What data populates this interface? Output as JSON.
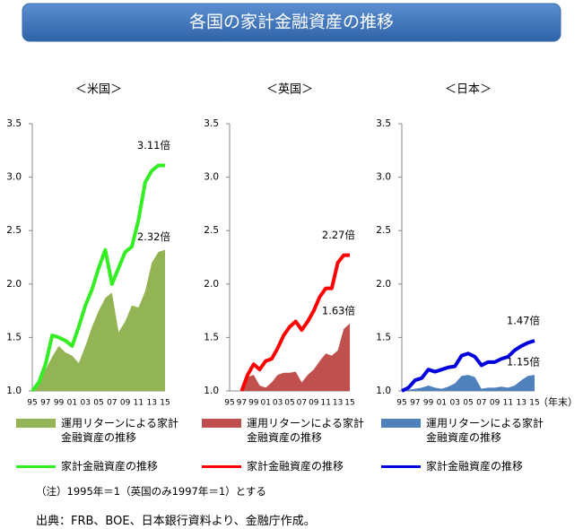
{
  "title": "各国の家計金融資産の推移",
  "note": "（注）1995年＝1（英国のみ1997年＝1）とする",
  "source": "出典：FRB、BOE、日本銀行資料より、金融庁作成。",
  "chart_data": [
    {
      "type": "line",
      "title": "＜米国＞",
      "categories": [
        "95",
        null,
        "97",
        null,
        "99",
        null,
        "01",
        null,
        "03",
        null,
        "05",
        null,
        "07",
        null,
        "09",
        null,
        "11",
        null,
        "13",
        null,
        "15"
      ],
      "ylim": [
        1,
        3.5
      ],
      "yticks": [
        {
          "value": 1,
          "label": "1.0"
        },
        1.5,
        {
          "value": 2,
          "label": "2.0"
        },
        2.5,
        {
          "value": 3,
          "label": "3.0"
        },
        3.5
      ],
      "series": [
        {
          "name": "運用リターンによる家計金融資産の推移",
          "type": "area",
          "color": "#93b454",
          "values": [
            1.0,
            1.05,
            1.2,
            1.32,
            1.42,
            1.36,
            1.33,
            1.26,
            1.42,
            1.6,
            1.75,
            1.87,
            1.92,
            1.55,
            1.65,
            1.8,
            1.78,
            1.93,
            2.2,
            2.3,
            2.32
          ],
          "value_labels": [
            null,
            null,
            null,
            null,
            null,
            null,
            null,
            null,
            null,
            null,
            null,
            null,
            null,
            null,
            null,
            null,
            null,
            null,
            null,
            null,
            "2.32倍"
          ]
        },
        {
          "name": "家計金融資産の推移",
          "type": "line",
          "color": "#33ee22",
          "values": [
            1.0,
            1.08,
            1.25,
            1.52,
            1.5,
            1.47,
            1.42,
            1.6,
            1.8,
            1.95,
            2.15,
            2.32,
            2.0,
            2.15,
            2.3,
            2.35,
            2.6,
            2.95,
            3.06,
            3.11,
            3.11
          ],
          "value_labels": [
            null,
            null,
            null,
            null,
            null,
            null,
            null,
            null,
            null,
            null,
            null,
            null,
            null,
            null,
            null,
            null,
            null,
            null,
            null,
            null,
            "3.11倍"
          ]
        }
      ]
    },
    {
      "type": "line",
      "title": "＜英国＞",
      "categories": [
        "95",
        null,
        "97",
        null,
        "99",
        null,
        "01",
        null,
        "03",
        null,
        "05",
        null,
        "07",
        null,
        "09",
        null,
        "11",
        null,
        "13",
        null,
        "15"
      ],
      "ylim": [
        1,
        3.5
      ],
      "yticks": [
        {
          "value": 1,
          "label": "1.0"
        },
        1.5,
        {
          "value": 2,
          "label": "2.0"
        },
        2.5,
        {
          "value": 3,
          "label": "3.0"
        },
        3.5
      ],
      "series": [
        {
          "name": "運用リターンによる家計金融資産の推移",
          "type": "area",
          "color": "#c0504d",
          "values": [
            null,
            null,
            1.0,
            1.13,
            1.15,
            1.05,
            1.03,
            1.08,
            1.15,
            1.17,
            1.17,
            1.18,
            1.08,
            1.15,
            1.2,
            1.28,
            1.35,
            1.33,
            1.38,
            1.58,
            1.63
          ],
          "value_labels": [
            null,
            null,
            null,
            null,
            null,
            null,
            null,
            null,
            null,
            null,
            null,
            null,
            null,
            null,
            null,
            null,
            null,
            null,
            null,
            null,
            "1.63倍"
          ]
        },
        {
          "name": "家計金融資産の推移",
          "type": "line",
          "color": "#ff0000",
          "values": [
            null,
            null,
            1.0,
            1.15,
            1.25,
            1.2,
            1.28,
            1.3,
            1.4,
            1.52,
            1.6,
            1.65,
            1.57,
            1.65,
            1.75,
            1.88,
            1.96,
            1.96,
            2.2,
            2.27,
            2.27
          ],
          "value_labels": [
            null,
            null,
            null,
            null,
            null,
            null,
            null,
            null,
            null,
            null,
            null,
            null,
            null,
            null,
            null,
            null,
            null,
            null,
            null,
            null,
            "2.27倍"
          ]
        }
      ]
    },
    {
      "type": "line",
      "title": "＜日本＞",
      "x_label": "（年末）",
      "categories": [
        "95",
        null,
        "97",
        null,
        "99",
        null,
        "01",
        null,
        "03",
        null,
        "05",
        null,
        "07",
        null,
        "09",
        null,
        "11",
        null,
        "13",
        null,
        "15"
      ],
      "ylim": [
        1,
        3.5
      ],
      "yticks": [
        {
          "value": 1,
          "label": "1.0"
        },
        1.5,
        {
          "value": 2,
          "label": "2.0"
        },
        2.5,
        {
          "value": 3,
          "label": "3.0"
        },
        3.5
      ],
      "series": [
        {
          "name": "運用リターンによる家計金融資産の推移",
          "type": "area",
          "color": "#4f81bd",
          "values": [
            1.0,
            1.01,
            1.02,
            1.03,
            1.05,
            1.03,
            1.02,
            1.04,
            1.07,
            1.14,
            1.15,
            1.13,
            1.02,
            1.03,
            1.03,
            1.04,
            1.03,
            1.05,
            1.1,
            1.14,
            1.15
          ],
          "value_labels": [
            null,
            null,
            null,
            null,
            null,
            null,
            null,
            null,
            null,
            null,
            null,
            null,
            null,
            null,
            null,
            null,
            null,
            null,
            null,
            null,
            "1.15倍"
          ]
        },
        {
          "name": "家計金融資産の推移",
          "type": "line",
          "color": "#0000dd",
          "values": [
            1.0,
            1.03,
            1.1,
            1.12,
            1.2,
            1.18,
            1.2,
            1.22,
            1.23,
            1.33,
            1.35,
            1.32,
            1.24,
            1.27,
            1.27,
            1.3,
            1.32,
            1.38,
            1.42,
            1.45,
            1.47
          ],
          "value_labels": [
            null,
            null,
            null,
            null,
            null,
            null,
            null,
            null,
            null,
            null,
            null,
            null,
            null,
            null,
            null,
            null,
            null,
            null,
            null,
            null,
            "1.47倍"
          ]
        }
      ]
    }
  ]
}
